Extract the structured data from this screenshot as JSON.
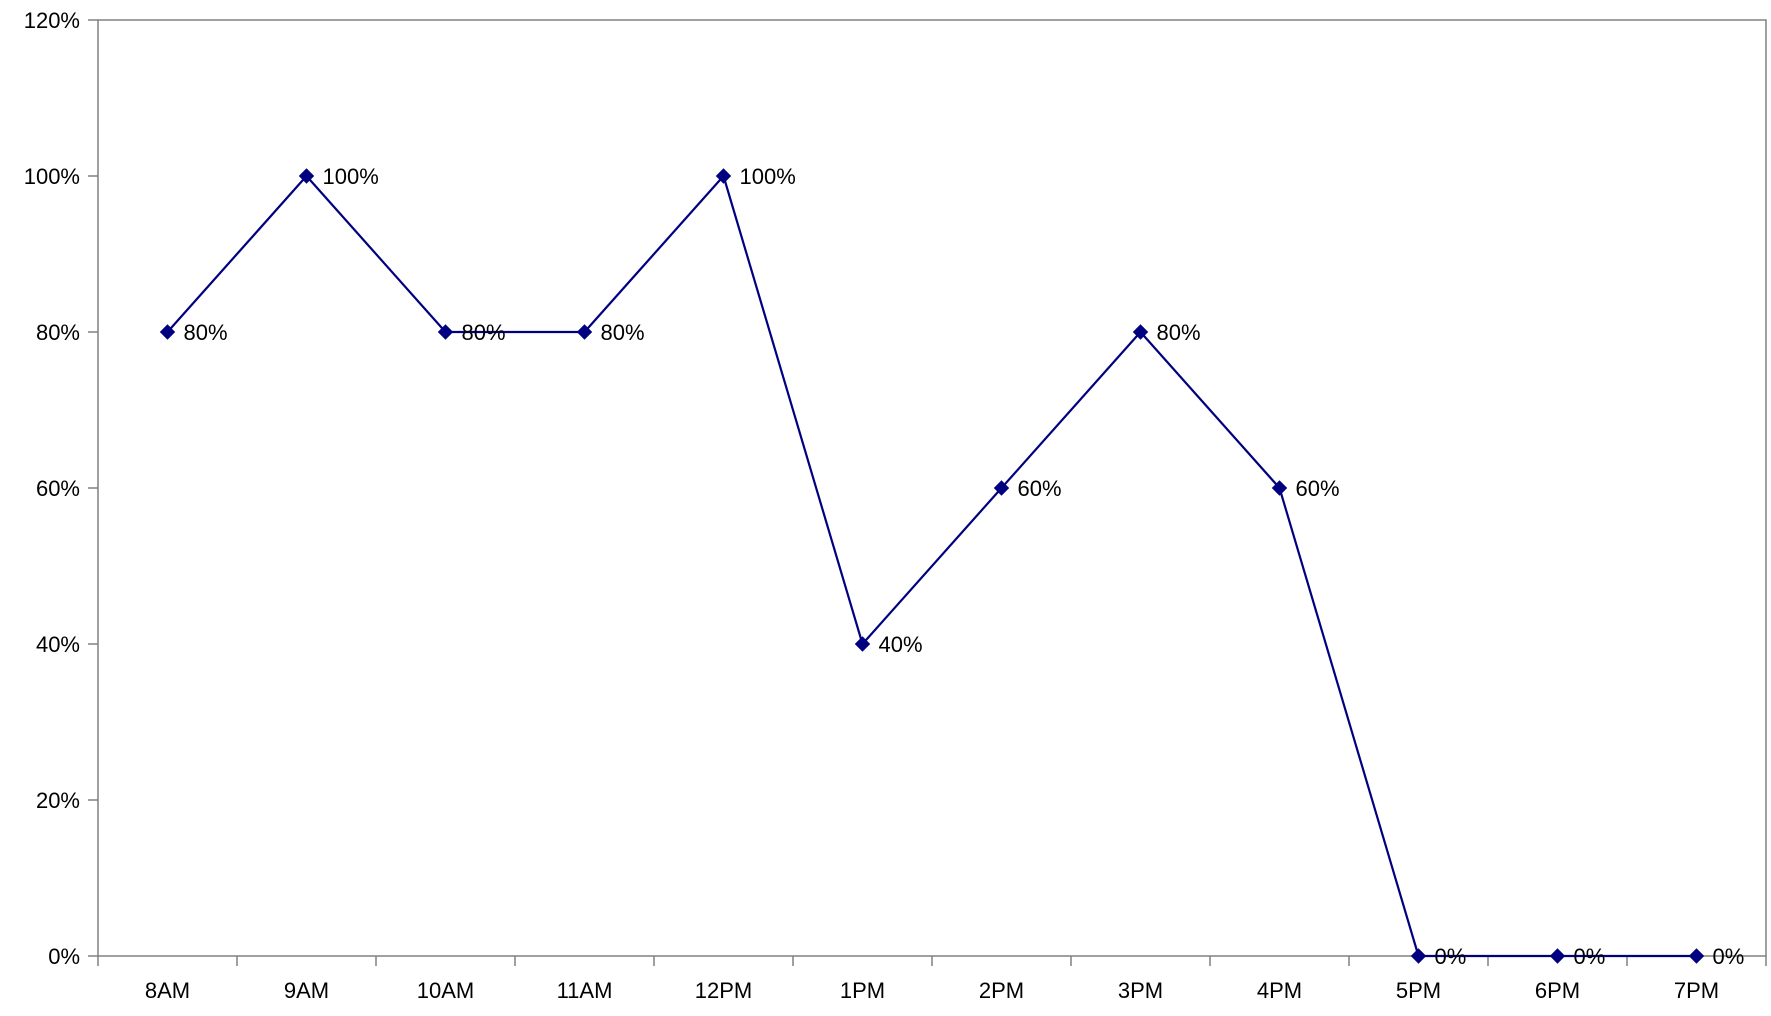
{
  "chart_data": {
    "type": "line",
    "title": "",
    "xlabel": "",
    "ylabel": "",
    "categories": [
      "8AM",
      "9AM",
      "10AM",
      "11AM",
      "12PM",
      "1PM",
      "2PM",
      "3PM",
      "4PM",
      "5PM",
      "6PM",
      "7PM"
    ],
    "series": [
      {
        "values": [
          80,
          100,
          80,
          80,
          100,
          40,
          60,
          80,
          60,
          0,
          0,
          0
        ],
        "data_labels": [
          "80%",
          "100%",
          "80%",
          "80%",
          "100%",
          "40%",
          "60%",
          "80%",
          "60%",
          "0%",
          "0%",
          "0%"
        ],
        "color": "#000080",
        "marker": "diamond"
      }
    ],
    "y_ticks": [
      0,
      20,
      40,
      60,
      80,
      100,
      120
    ],
    "y_tick_labels": [
      "0%",
      "20%",
      "40%",
      "60%",
      "80%",
      "100%",
      "120%"
    ],
    "ylim": [
      0,
      120
    ],
    "grid": false,
    "legend": "none",
    "axis_color": "#808080"
  }
}
